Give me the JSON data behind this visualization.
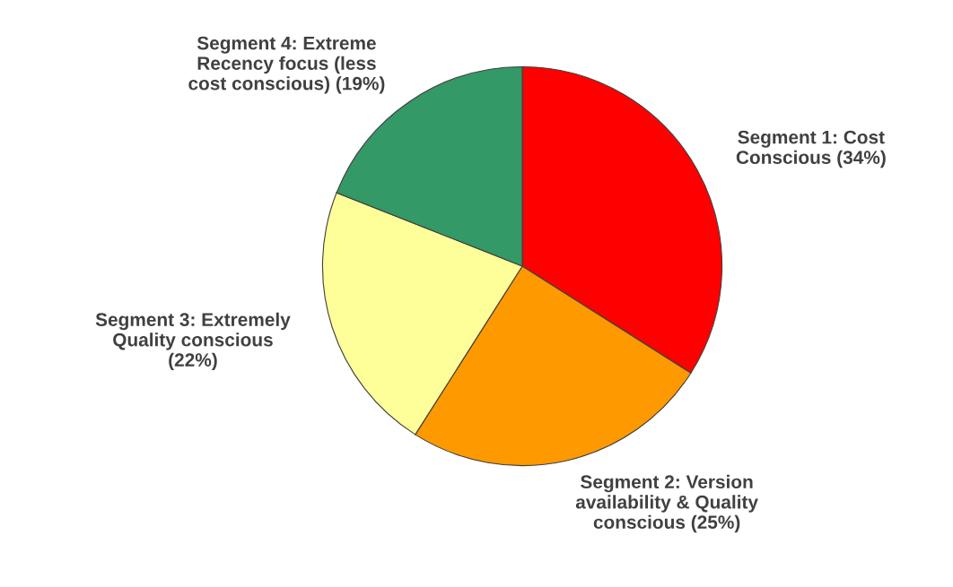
{
  "chart_data": {
    "type": "pie",
    "categories": [
      "Segment 1: Cost\nConscious (34%)",
      "Segment 2: Version\navailability & Quality\nconscious (25%)",
      "Segment 3: Extremely\nQuality conscious\n(22%)",
      "Segment 4: Extreme\nRecency focus (less\ncost conscious) (19%)"
    ],
    "values": [
      34,
      25,
      22,
      19
    ],
    "colors": [
      "#ff0000",
      "#ff9900",
      "#ffff99",
      "#339966"
    ]
  }
}
